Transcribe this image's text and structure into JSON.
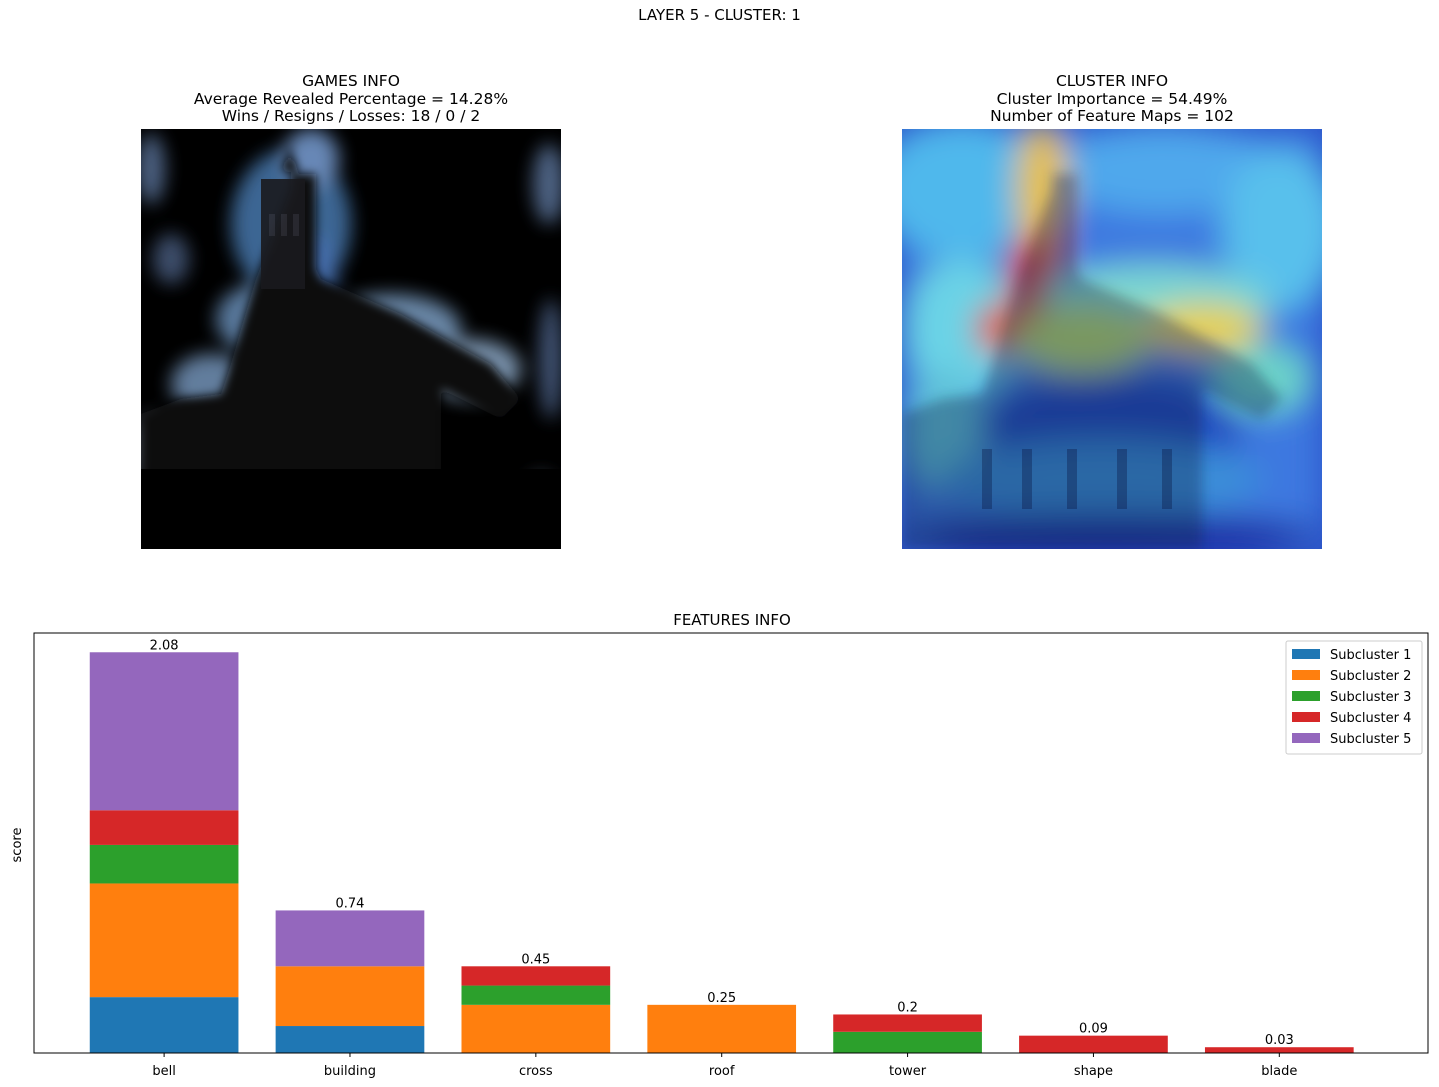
{
  "suptitle": "LAYER 5 - CLUSTER: 1",
  "games_info": {
    "title": "GAMES INFO",
    "line1": "Average Revealed Percentage = 14.28%",
    "line2": "Wins / Resigns / Losses: 18 / 0 / 2"
  },
  "cluster_info": {
    "title": "CLUSTER INFO",
    "line1": "Cluster Importance = 54.49%",
    "line2": "Number of Feature Maps = 102"
  },
  "chart_data": {
    "type": "bar",
    "stacked": true,
    "title": "FEATURES INFO",
    "xlabel": "",
    "ylabel": "score",
    "ylim": [
      0,
      2.18
    ],
    "y_ticks_visible": false,
    "grid": false,
    "legend_position": "top-right",
    "categories": [
      "bell",
      "building",
      "cross",
      "roof",
      "tower",
      "shape",
      "blade"
    ],
    "totals": [
      2.08,
      0.74,
      0.45,
      0.25,
      0.2,
      0.09,
      0.03
    ],
    "total_labels": [
      "2.08",
      "0.74",
      "0.45",
      "0.25",
      "0.2",
      "0.09",
      "0.03"
    ],
    "series": [
      {
        "name": "Subcluster 1",
        "color": "#1f77b4",
        "values": [
          0.29,
          0.14,
          0,
          0,
          0,
          0,
          0
        ]
      },
      {
        "name": "Subcluster 2",
        "color": "#ff7f0e",
        "values": [
          0.59,
          0.31,
          0.25,
          0.25,
          0,
          0,
          0
        ]
      },
      {
        "name": "Subcluster 3",
        "color": "#2ca02c",
        "values": [
          0.2,
          0,
          0.1,
          0,
          0.11,
          0,
          0
        ]
      },
      {
        "name": "Subcluster 4",
        "color": "#d62728",
        "values": [
          0.18,
          0,
          0.1,
          0,
          0.09,
          0.09,
          0.03
        ]
      },
      {
        "name": "Subcluster 5",
        "color": "#9467bd",
        "values": [
          0.82,
          0.29,
          0,
          0,
          0,
          0,
          0
        ]
      }
    ]
  }
}
